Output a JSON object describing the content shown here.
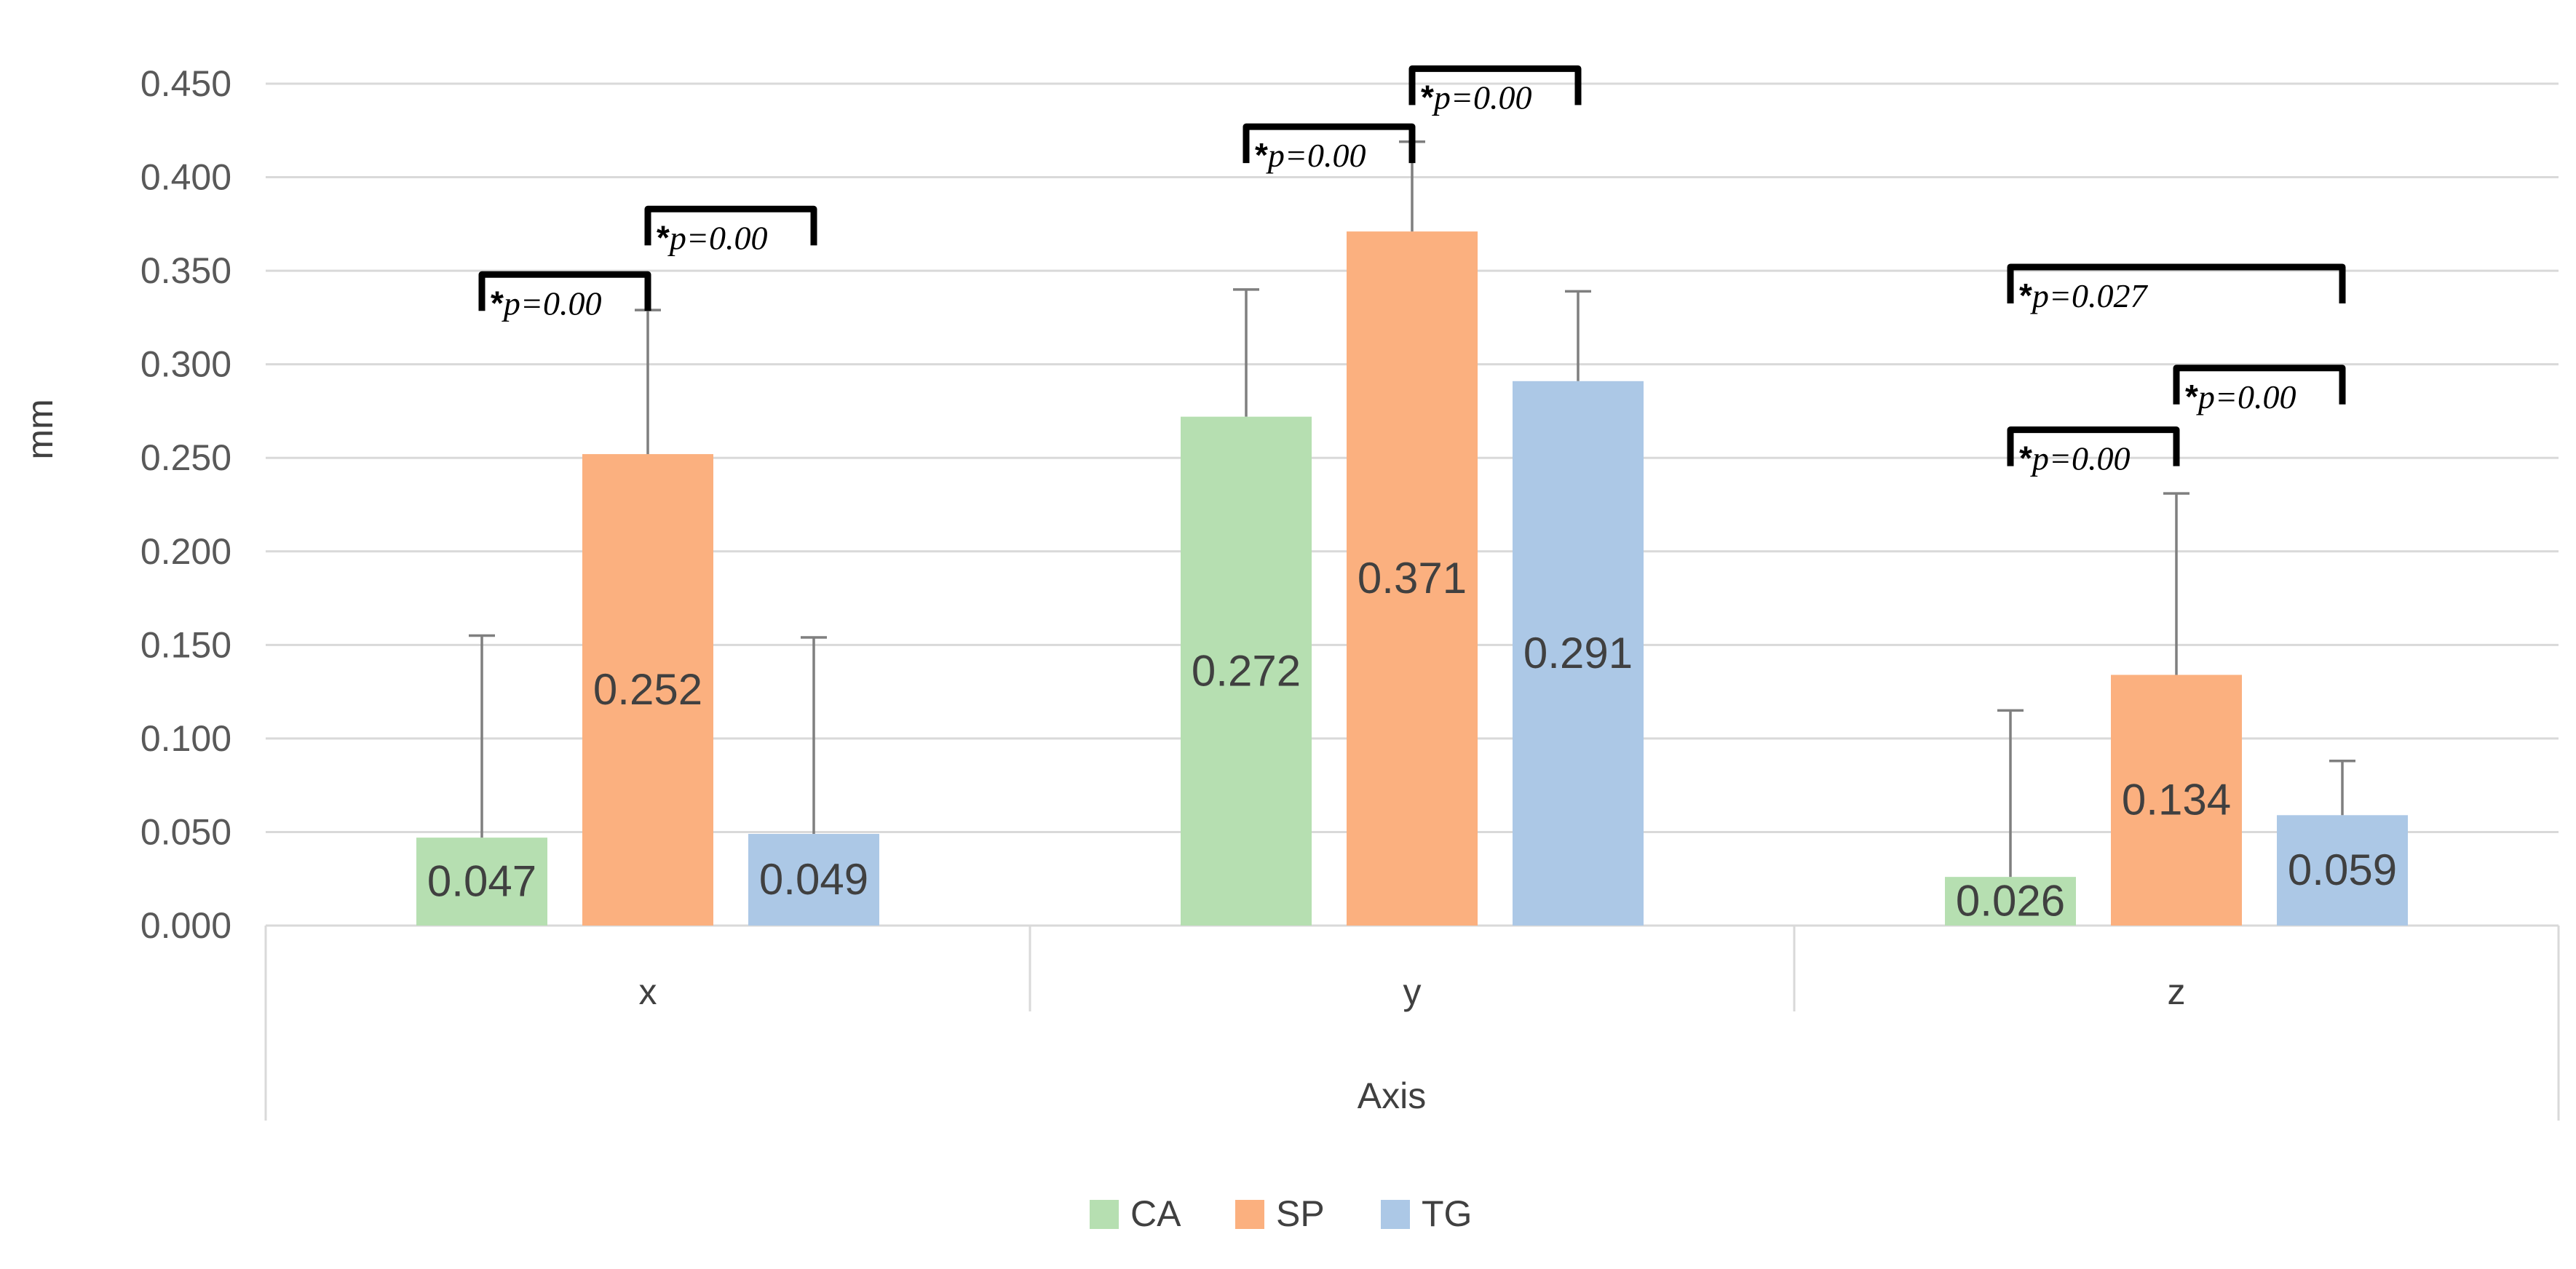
{
  "chart_data": {
    "type": "bar",
    "title": "",
    "xlabel": "Axis",
    "ylabel": "mm",
    "ylim": [
      0,
      0.45
    ],
    "y_ticks": [
      "0.000",
      "0.050",
      "0.100",
      "0.150",
      "0.200",
      "0.250",
      "0.300",
      "0.350",
      "0.400",
      "0.450"
    ],
    "categories": [
      "x",
      "y",
      "z"
    ],
    "grid": true,
    "legend_position": "bottom",
    "series": [
      {
        "name": "CA",
        "color": "#b6dfb1",
        "values": [
          0.047,
          0.272,
          0.026
        ],
        "labels": [
          "0.047",
          "0.272",
          "0.026"
        ],
        "error_upper": [
          0.155,
          0.34,
          0.115
        ]
      },
      {
        "name": "SP",
        "color": "#fbb07f",
        "values": [
          0.252,
          0.371,
          0.134
        ],
        "labels": [
          "0.252",
          "0.371",
          "0.134"
        ],
        "error_upper": [
          0.329,
          0.419,
          0.231
        ]
      },
      {
        "name": "TG",
        "color": "#acc8e6",
        "values": [
          0.049,
          0.291,
          0.059
        ],
        "labels": [
          "0.049",
          "0.291",
          "0.059"
        ],
        "error_upper": [
          0.154,
          0.339,
          0.088
        ]
      }
    ],
    "significance": [
      {
        "category": 0,
        "from": "CA",
        "to": "SP",
        "level": 0.348,
        "star": "*",
        "p_label": "p=0.00"
      },
      {
        "category": 0,
        "from": "SP",
        "to": "TG",
        "level": 0.383,
        "star": "*",
        "p_label": "p=0.00"
      },
      {
        "category": 1,
        "from": "CA",
        "to": "SP",
        "level": 0.427,
        "star": "*",
        "p_label": "p=0.00"
      },
      {
        "category": 1,
        "from": "SP",
        "to": "TG",
        "level": 0.458,
        "star": "*",
        "p_label": "p=0.00"
      },
      {
        "category": 2,
        "from": "CA",
        "to": "TG",
        "level": 0.352,
        "star": "*",
        "p_label": "p=0.027"
      },
      {
        "category": 2,
        "from": "CA",
        "to": "SP",
        "level": 0.265,
        "star": "*",
        "p_label": "p=0.00"
      },
      {
        "category": 2,
        "from": "SP",
        "to": "TG",
        "level": 0.298,
        "star": "*",
        "p_label": "p=0.00"
      }
    ]
  }
}
